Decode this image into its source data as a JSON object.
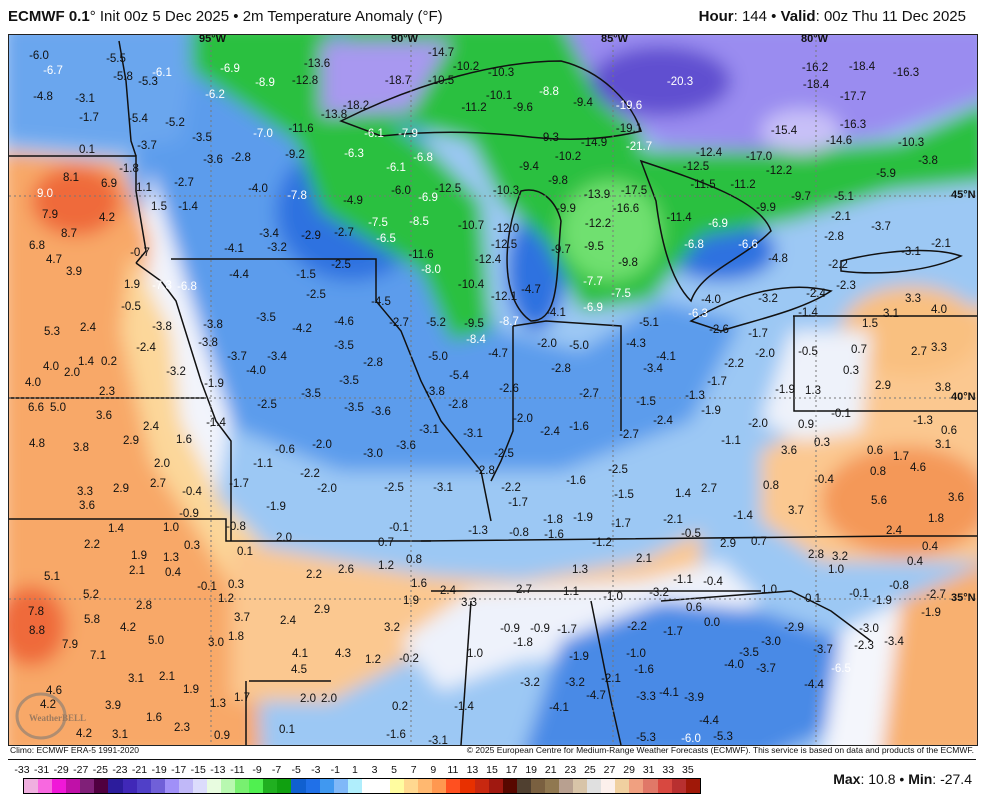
{
  "header": {
    "model": "ECMWF 0.1",
    "init": "° Init 00z 5 Dec 2025 • 2m Temperature Anomaly (°F)",
    "hour_label": "Hour",
    "hour": ": 144 • ",
    "valid_label": "Valid",
    "valid": ": 00z Thu 11 Dec 2025"
  },
  "map": {
    "axis_labels": [
      "95°W",
      "90°W",
      "85°W",
      "80°W",
      "45°N",
      "40°N",
      "35°N"
    ],
    "watermark": "WeatherBELL",
    "values": [
      "-6.0",
      "-6.7",
      "-5.5",
      "-5.8",
      "-5.3",
      "-6.1",
      "-4.8",
      "-3.1",
      "-1.7",
      "-5.4",
      "-5.2",
      "0.1",
      "-3.7",
      "-3.5",
      "-1.8",
      "-3.6",
      "-2.8",
      "-2.7",
      "-7.0",
      "-9.2",
      "-7.8",
      "-4.0",
      "8.1",
      "6.9",
      "9.0",
      "1.1",
      "1.5",
      "-1.4",
      "7.9",
      "4.2",
      "8.7",
      "6.8",
      "4.7",
      "3.9",
      "-3.4",
      "-2.9",
      "-4.1",
      "-3.2",
      "-0.7",
      "-6.9",
      "-8.9",
      "-12.8",
      "-13.6",
      "-6.2",
      "-11.6",
      "-13.8",
      "-14.7",
      "-10.2",
      "-18.7",
      "-10.5",
      "-10.3",
      "-18.2",
      "-10.1",
      "-9.6",
      "-8.8",
      "-9.4",
      "-19.6",
      "-11.2",
      "-6.1",
      "-7.9",
      "-9.3",
      "-14.9",
      "-19.1",
      "-21.7",
      "-6.3",
      "-6.8",
      "-10.2",
      "-6.1",
      "-9.4",
      "-9.8",
      "-6.0",
      "-12.5",
      "-10.3",
      "-4.9",
      "-6.9",
      "-9.9",
      "-13.9",
      "-17.5",
      "-16.6",
      "-7.5",
      "-6.5",
      "-8.5",
      "-10.7",
      "-12.0",
      "-12.2",
      "-2.7",
      "-12.5",
      "-9.7",
      "-9.5",
      "-11.6",
      "-12.4",
      "-9.8",
      "-2.5",
      "-8.0",
      "-20.3",
      "-16.2",
      "-18.4",
      "-16.3",
      "-18.4",
      "-17.7",
      "-16.3",
      "-15.4",
      "-14.6",
      "-10.3",
      "-12.4",
      "-17.0",
      "-12.5",
      "-11.5",
      "-11.2",
      "-12.2",
      "-9.7",
      "-3.8",
      "-5.9",
      "-5.1",
      "-9.9",
      "-11.4",
      "-6.9",
      "-2.1",
      "-3.7",
      "-6.8",
      "-6.6",
      "-2.8",
      "-3.1",
      "-2.1",
      "-4.8",
      "-2.2",
      "1.9",
      "-7.3",
      "-6.8",
      "-4.4",
      "-1.5",
      "-0.5",
      "-2.5",
      "5.3",
      "2.4",
      "-3.8",
      "-3.8",
      "-3.8",
      "-3.5",
      "-4.2",
      "-2.4",
      "1.4",
      "0.2",
      "4.0",
      "2.0",
      "4.0",
      "-3.7",
      "-3.4",
      "-3.2",
      "-4.0",
      "-1.9",
      "2.3",
      "-3.5",
      "6.6",
      "5.0",
      "-2.5",
      "3.6",
      "-1.4",
      "2.4",
      "2.9",
      "1.6",
      "4.8",
      "3.8",
      "-0.6",
      "-2.0",
      "2.0",
      "-1.1",
      "-2.2",
      "3.3",
      "2.9",
      "2.7",
      "-0.4",
      "-1.7",
      "-2.0",
      "3.6",
      "-1.9",
      "-10.4",
      "-12.1",
      "-4.7",
      "-7.7",
      "-7.5",
      "-4.5",
      "-6.9",
      "-4.1",
      "-4.6",
      "-2.7",
      "-5.2",
      "-9.5",
      "-8.7",
      "-5.1",
      "-8.4",
      "-2.0",
      "-5.0",
      "-4.3",
      "-3.5",
      "-5.0",
      "-4.7",
      "-2.8",
      "-3.4",
      "-2.8",
      "-3.5",
      "-5.4",
      "-3.8",
      "-2.6",
      "-2.7",
      "-1.5",
      "-2.8",
      "-3.5",
      "-3.6",
      "-2.0",
      "-2.4",
      "-1.6",
      "-3.1",
      "-3.1",
      "-3.6",
      "-2.7",
      "-3.0",
      "-2.5",
      "-2.5",
      "-2.8",
      "-2.2",
      "-1.6",
      "-2.5",
      "-3.1",
      "-1.5",
      "-1.7",
      "-4.0",
      "-3.2",
      "-2.4",
      "-2.3",
      "-6.3",
      "3.3",
      "3.1",
      "4.0",
      "-1.4",
      "-2.6",
      "-1.7",
      "1.5",
      "-4.1",
      "-2.0",
      "-2.2",
      "-0.5",
      "0.7",
      "2.7",
      "3.3",
      "0.3",
      "-1.7",
      "-1.9",
      "1.3",
      "2.9",
      "3.8",
      "-1.3",
      "-1.9",
      "-0.1",
      "-1.3",
      "-2.4",
      "-2.0",
      "0.9",
      "0.6",
      "3.6",
      "0.3",
      "0.6",
      "1.7",
      "3.1",
      "4.6",
      "-1.1",
      "0.8",
      "-0.4",
      "0.8",
      "1.4",
      "2.7",
      "5.6",
      "3.6",
      "1.4",
      "1.0",
      "-0.9",
      "-0.8",
      "0.3",
      "2.2",
      "2.0",
      "1.9",
      "1.3",
      "0.1",
      "2.1",
      "0.4",
      "5.1",
      "2.2",
      "-0.1",
      "0.3",
      "1.2",
      "5.2",
      "2.8",
      "2.9",
      "7.8",
      "5.8",
      "3.7",
      "2.4",
      "8.8",
      "4.2",
      "5.0",
      "3.0",
      "1.8",
      "7.9",
      "7.1",
      "4.1",
      "4.5",
      "3.1",
      "2.1",
      "4.6",
      "1.9",
      "1.3",
      "1.7",
      "2.0",
      "2.0",
      "3.9",
      "4.2",
      "1.6",
      "2.3",
      "4.2",
      "3.1",
      "0.9",
      "0.1",
      "-0.1",
      "-1.3",
      "-0.8",
      "-1.8",
      "-1.9",
      "-1.7",
      "-1.6",
      "0.7",
      "-1.2",
      "0.8",
      "2.6",
      "1.2",
      "2.1",
      "1.3",
      "1.6",
      "2.4",
      "2.7",
      "1.1",
      "-1.0",
      "1.9",
      "3.3",
      "-0.9",
      "-0.9",
      "-1.7",
      "-2.2",
      "3.2",
      "-1.8",
      "4.3",
      "1.2",
      "-0.2",
      "1.0",
      "-1.9",
      "-1.0",
      "-1.6",
      "-3.2",
      "-3.2",
      "-2.1",
      "-4.7",
      "-3.3",
      "0.2",
      "-1.4",
      "-4.1",
      "-1.6",
      "-3.1",
      "-5.3",
      "-1.4",
      "3.7",
      "1.8",
      "-2.1",
      "-0.5",
      "2.9",
      "0.7",
      "2.4",
      "0.4",
      "2.8",
      "3.2",
      "1.0",
      "0.4",
      "-1.1",
      "-0.4",
      "-3.2",
      "1.0",
      "0.1",
      "-0.1",
      "-0.8",
      "-1.9",
      "-2.7",
      "-1.9",
      "0.6",
      "0.0",
      "-1.7",
      "-2.9",
      "-3.0",
      "-3.0",
      "-2.3",
      "-3.4",
      "-3.5",
      "-3.7",
      "-4.0",
      "-3.7",
      "-6.5",
      "-4.4",
      "-4.1",
      "-3.9",
      "-4.4",
      "-6.0",
      "-5.3"
    ],
    "colors": {
      "cold_deep": "#6050d0",
      "cold_purple": "#9a8cf0",
      "green": "#2cc040",
      "blue_dark": "#2f72e0",
      "blue": "#5c9cec",
      "blue_light": "#9cc8f4",
      "neutral": "#f2f4fc",
      "warm_light": "#fcd79a",
      "warm": "#f8a868",
      "warm_hot": "#ef6a3a"
    }
  },
  "footer": {
    "climo": "Climo: ECMWF ERA-5 1991-2020",
    "copyright": "© 2025 European Centre for Medium-Range Weather Forecasts (ECMWF). This service is based on data and products of the ECMWF."
  },
  "legend": {
    "ticks": [
      "-33",
      "-31",
      "-29",
      "-27",
      "-25",
      "-23",
      "-21",
      "-19",
      "-17",
      "-15",
      "-13",
      "-11",
      "-9",
      "-7",
      "-5",
      "-3",
      "-1",
      "1",
      "3",
      "5",
      "7",
      "9",
      "11",
      "13",
      "15",
      "17",
      "19",
      "21",
      "23",
      "25",
      "27",
      "29",
      "31",
      "33",
      "35"
    ],
    "colors": [
      "#f0b0e0",
      "#f868e0",
      "#f018d8",
      "#c010a8",
      "#802078",
      "#500040",
      "#2c1c9c",
      "#4028b8",
      "#5040c8",
      "#7060d8",
      "#a090f8",
      "#c0b8f8",
      "#dcdcfc",
      "#e8fce0",
      "#b8f8b0",
      "#78f070",
      "#50f050",
      "#20b020",
      "#10a010",
      "#1060d0",
      "#2070e8",
      "#4098f0",
      "#80b8f8",
      "#b0eefc",
      "#ffffff",
      "#ffffff",
      "#fffca0",
      "#ffd890",
      "#ffb870",
      "#ff9850",
      "#ff5020",
      "#e83000",
      "#c82810",
      "#a01810",
      "#580800",
      "#504030",
      "#7a6040",
      "#907850",
      "#b8a090",
      "#d8c4a8",
      "#e0e0e0",
      "#fcf0ec",
      "#f0d0a0",
      "#f0a080",
      "#e07868",
      "#d84840",
      "#b83030",
      "#a01808"
    ],
    "max_label": "Max",
    "max": ": 10.8 • ",
    "min_label": "Min",
    "min": ": -27.4"
  }
}
